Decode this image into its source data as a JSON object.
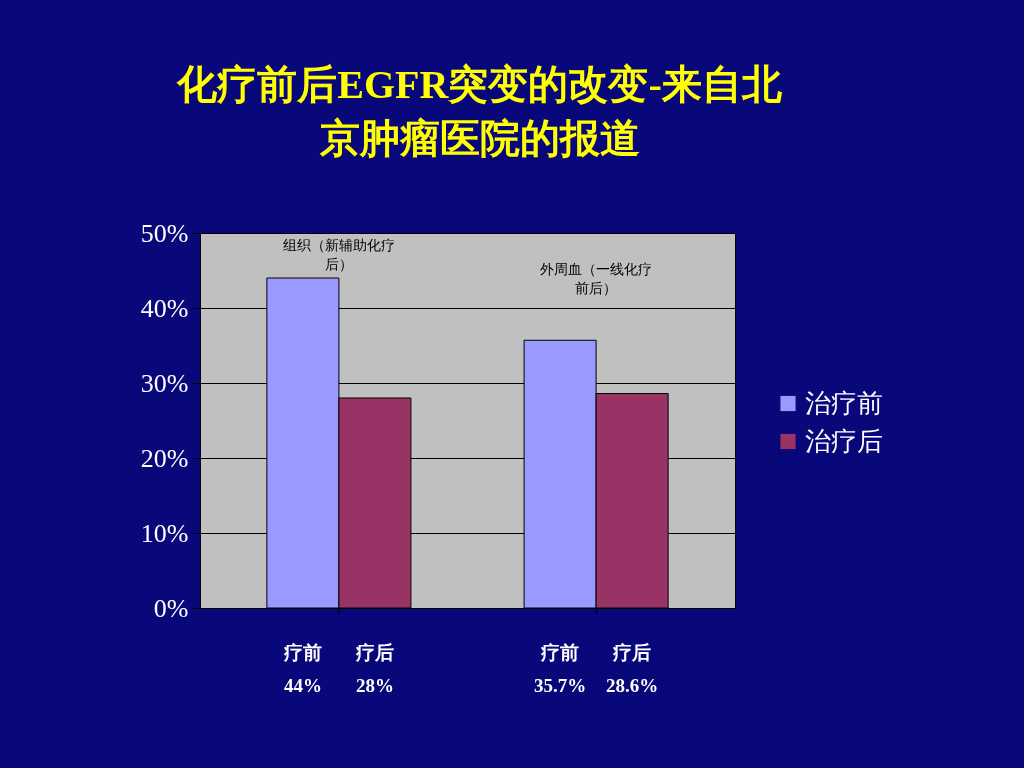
{
  "chart_data": {
    "type": "bar",
    "title": "化疗前后EGFR突变的改变-来自北京肿瘤医院的报道",
    "categories": [
      null,
      null
    ],
    "series": [
      {
        "name": "治疗前",
        "color": "#9999ff",
        "values": [
          44,
          35.7
        ],
        "value_labels": [
          "疗前\n44%",
          "疗前\n35.7%"
        ]
      },
      {
        "name": "治疗后",
        "color": "#993366",
        "values": [
          28,
          28.6
        ],
        "value_labels": [
          "疗后\n28%",
          "疗后\n28.6%"
        ]
      }
    ],
    "ylim": [
      0,
      50
    ],
    "yticks": [
      {
        "value": 0,
        "label": "0%"
      },
      {
        "value": 10,
        "label": "10%"
      },
      {
        "value": 20,
        "label": "20%"
      },
      {
        "value": 30,
        "label": "30%"
      },
      {
        "value": 40,
        "label": "40%"
      },
      {
        "value": 50,
        "label": "50%"
      }
    ],
    "grid": "y",
    "legend": "right",
    "annotations": [
      "组织（新辅助化疗后）",
      "外周血（一线化疗前后）"
    ]
  }
}
